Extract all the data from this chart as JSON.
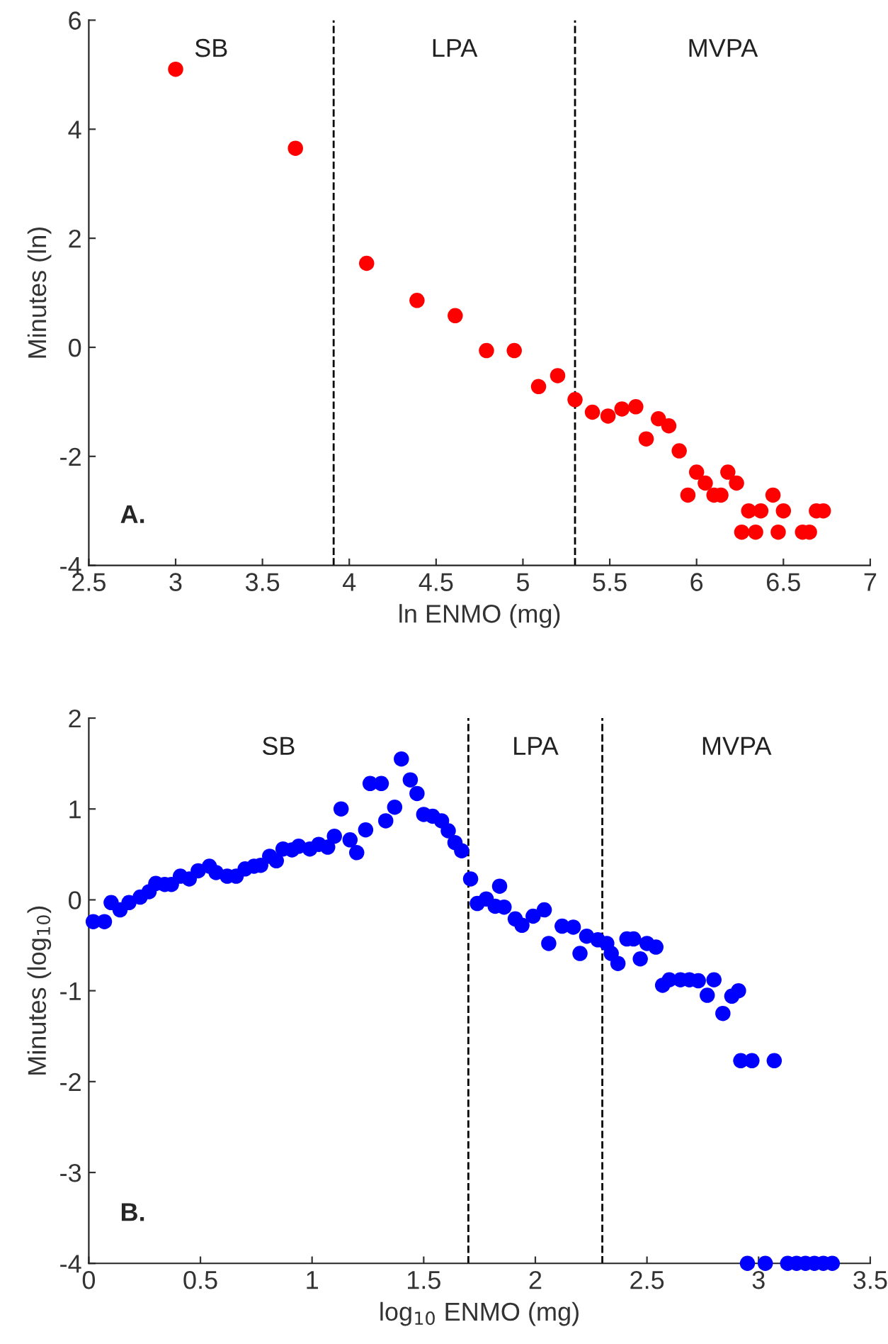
{
  "chart_data": [
    {
      "type": "scatter",
      "xlabel": "ln ENMO (mg)",
      "ylabel": "Minutes (ln)",
      "marker": "circle",
      "grid": false,
      "legend": false,
      "xlim": [
        2.5,
        7
      ],
      "xticks": [
        2.5,
        3,
        3.5,
        4,
        4.5,
        5,
        5.5,
        6,
        6.5,
        7
      ],
      "ylim": [
        -4,
        6
      ],
      "yticks": [
        -4,
        -2,
        0,
        2,
        4,
        6
      ],
      "ref_lines": [
        {
          "axis": "x",
          "value": 3.91,
          "line_style": "dashed",
          "color": "#000000"
        },
        {
          "axis": "x",
          "value": 5.3,
          "line_style": "dashed",
          "color": "#000000"
        }
      ],
      "annotations": [
        "SB",
        "LPA",
        "MVPA",
        "A."
      ],
      "series": [
        {
          "color": "#ff0000",
          "x": [
            3.0,
            3.69,
            4.1,
            4.39,
            4.61,
            4.79,
            4.95,
            5.09,
            5.2,
            5.3,
            5.4,
            5.49,
            5.57,
            5.65,
            5.71,
            5.78,
            5.84,
            5.9,
            5.95,
            6.0,
            6.05,
            6.1,
            6.14,
            6.18,
            6.23,
            6.26,
            6.3,
            6.34,
            6.37,
            6.44,
            6.47,
            6.5,
            6.61,
            6.65,
            6.69,
            6.73
          ],
          "values": [
            5.1,
            3.65,
            1.54,
            0.86,
            0.58,
            -0.06,
            -0.06,
            -0.72,
            -0.52,
            -0.96,
            -1.19,
            -1.26,
            -1.13,
            -1.09,
            -1.68,
            -1.31,
            -1.44,
            -1.9,
            -2.71,
            -2.29,
            -2.49,
            -2.71,
            -2.71,
            -2.29,
            -2.49,
            -3.39,
            -3.0,
            -3.39,
            -3.0,
            -2.71,
            -3.39,
            -3.0,
            -3.39,
            -3.39,
            -3.0,
            -3.0
          ]
        }
      ]
    },
    {
      "type": "scatter",
      "xlabel": "log$_{10}$ ENMO (mg)",
      "ylabel": "Minutes (log$_{10}$)",
      "marker": "circle",
      "grid": false,
      "legend": false,
      "xlim": [
        0,
        3.5
      ],
      "xticks": [
        0,
        0.5,
        1,
        1.5,
        2,
        2.5,
        3,
        3.5
      ],
      "ylim": [
        -4,
        2
      ],
      "yticks": [
        -4,
        -3,
        -2,
        -1,
        0,
        1,
        2
      ],
      "ref_lines": [
        {
          "axis": "x",
          "value": 1.7,
          "line_style": "dashed",
          "color": "#000000"
        },
        {
          "axis": "x",
          "value": 2.3,
          "line_style": "dashed",
          "color": "#000000"
        }
      ],
      "annotations": [
        "SB",
        "LPA",
        "MVPA",
        "B."
      ],
      "series": [
        {
          "color": "#0000ff",
          "x": [
            0.02,
            0.07,
            0.1,
            0.14,
            0.18,
            0.23,
            0.27,
            0.3,
            0.34,
            0.37,
            0.41,
            0.45,
            0.49,
            0.54,
            0.57,
            0.62,
            0.66,
            0.7,
            0.74,
            0.77,
            0.81,
            0.84,
            0.87,
            0.91,
            0.94,
            0.99,
            1.03,
            1.07,
            1.1,
            1.13,
            1.17,
            1.2,
            1.24,
            1.26,
            1.31,
            1.33,
            1.37,
            1.4,
            1.44,
            1.47,
            1.5,
            1.54,
            1.58,
            1.61,
            1.64,
            1.67,
            1.71,
            1.74,
            1.78,
            1.82,
            1.84,
            1.86,
            1.91,
            1.94,
            1.99,
            2.04,
            2.06,
            2.12,
            2.17,
            2.2,
            2.23,
            2.28,
            2.32,
            2.34,
            2.37,
            2.41,
            2.44,
            2.47,
            2.5,
            2.54,
            2.57,
            2.6,
            2.65,
            2.69,
            2.73,
            2.77,
            2.8,
            2.84,
            2.88,
            2.91,
            2.92,
            2.97,
            3.07,
            2.95,
            3.03,
            3.13,
            3.17,
            3.21,
            3.25,
            3.29,
            3.33
          ],
          "values": [
            -0.24,
            -0.24,
            -0.03,
            -0.11,
            -0.03,
            0.03,
            0.09,
            0.18,
            0.17,
            0.17,
            0.26,
            0.23,
            0.32,
            0.37,
            0.3,
            0.26,
            0.26,
            0.34,
            0.37,
            0.38,
            0.48,
            0.43,
            0.56,
            0.55,
            0.59,
            0.56,
            0.61,
            0.58,
            0.7,
            1.0,
            0.66,
            0.52,
            0.77,
            1.28,
            1.28,
            0.87,
            1.02,
            1.55,
            1.32,
            1.17,
            0.94,
            0.92,
            0.87,
            0.76,
            0.63,
            0.54,
            0.23,
            -0.04,
            0.01,
            -0.07,
            0.15,
            -0.08,
            -0.21,
            -0.28,
            -0.18,
            -0.11,
            -0.48,
            -0.29,
            -0.3,
            -0.59,
            -0.4,
            -0.44,
            -0.48,
            -0.59,
            -0.7,
            -0.43,
            -0.43,
            -0.65,
            -0.48,
            -0.52,
            -0.94,
            -0.88,
            -0.88,
            -0.88,
            -0.89,
            -1.05,
            -0.88,
            -1.25,
            -1.06,
            -1.0,
            -1.77,
            -1.77,
            -1.77,
            -4,
            -4,
            -4,
            -4,
            -4,
            -4,
            -4,
            -4
          ]
        }
      ]
    }
  ]
}
